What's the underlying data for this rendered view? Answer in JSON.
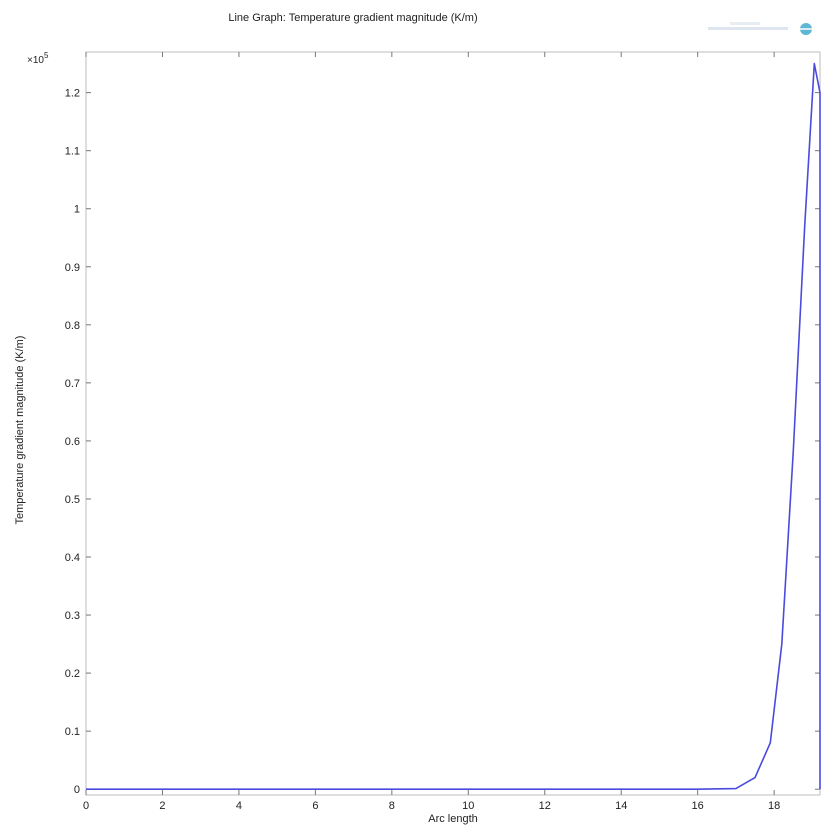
{
  "chart_data": {
    "type": "line",
    "title": "Line Graph: Temperature gradient magnitude (K/m)",
    "xlabel": "Arc length",
    "ylabel": "Temperature gradient magnitude (K/m)",
    "y_multiplier": "×10",
    "y_exponent": "5",
    "xlim": [
      0,
      19.2
    ],
    "ylim": [
      -0.01,
      1.27
    ],
    "x_ticks": [
      0,
      2,
      4,
      6,
      8,
      10,
      12,
      14,
      16,
      18
    ],
    "y_ticks": [
      0,
      0.1,
      0.2,
      0.3,
      0.4,
      0.5,
      0.6,
      0.7,
      0.8,
      0.9,
      1,
      1.1,
      1.2
    ],
    "grid": false,
    "series": [
      {
        "color": "#4a4adf",
        "x": [
          0,
          16,
          17.0,
          17.5,
          17.9,
          18.2,
          18.5,
          18.8,
          19.05,
          19.2,
          19.2
        ],
        "y": [
          0,
          0,
          0.001,
          0.02,
          0.08,
          0.25,
          0.58,
          0.97,
          1.25,
          1.2,
          0
        ]
      }
    ]
  }
}
